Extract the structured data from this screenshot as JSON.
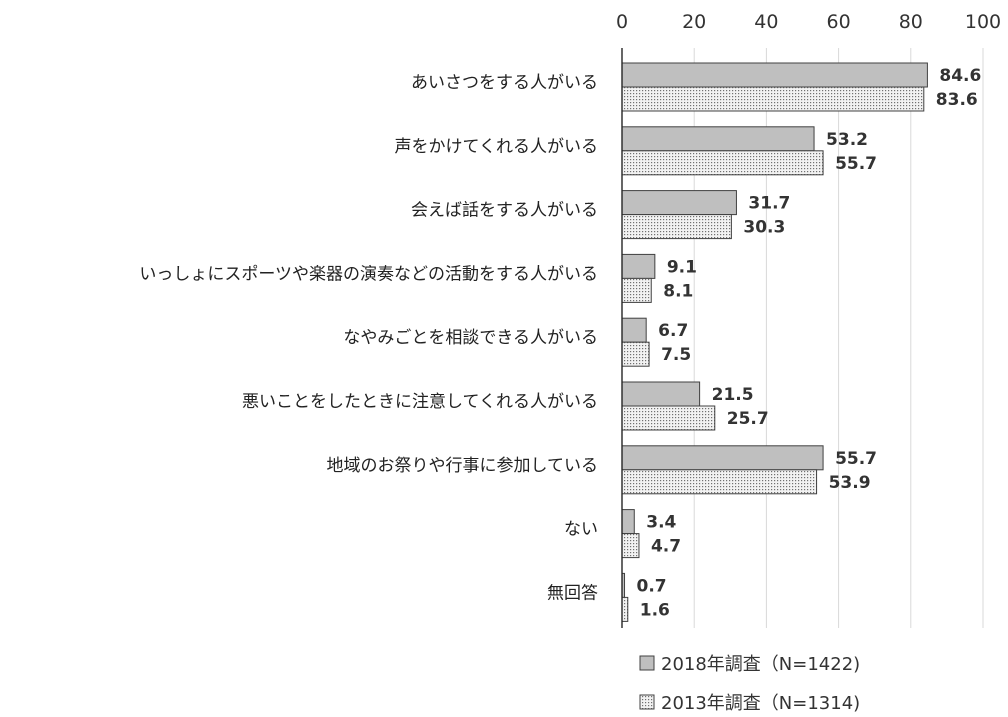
{
  "chart_data": {
    "type": "bar",
    "orientation": "horizontal",
    "categories": [
      "あいさつをする人がいる",
      "声をかけてくれる人がいる",
      "会えば話をする人がいる",
      "いっしょにスポーツや楽器の演奏などの活動をする人がいる",
      "なやみごとを相談できる人がいる",
      "悪いことをしたときに注意してくれる人がいる",
      "地域のお祭りや行事に参加している",
      "ない",
      "無回答"
    ],
    "series": [
      {
        "name": "2018年調査（N=1422)",
        "values": [
          84.6,
          53.2,
          31.7,
          9.1,
          6.7,
          21.5,
          55.7,
          3.4,
          0.7
        ],
        "fill": "#bfbfbf",
        "pattern": "solid"
      },
      {
        "name": "2013年調査（N=1314)",
        "values": [
          83.6,
          55.7,
          30.3,
          8.1,
          7.5,
          25.7,
          53.9,
          4.7,
          1.6
        ],
        "fill": "#e6e6e6",
        "pattern": "dotted"
      }
    ],
    "x_ticks": [
      "0",
      "20",
      "40",
      "60",
      "80",
      "100"
    ],
    "xlim": [
      0,
      100
    ],
    "grid": true,
    "legend_position": "bottom",
    "title": "",
    "xlabel": "",
    "ylabel": ""
  }
}
